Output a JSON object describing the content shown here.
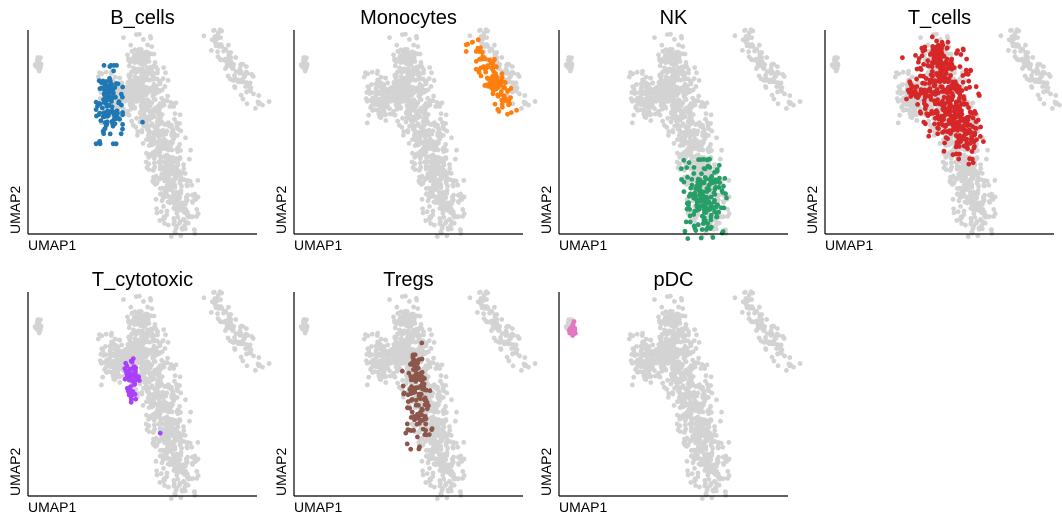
{
  "chart_data": {
    "type": "scatter",
    "xlabel": "UMAP1",
    "ylabel": "UMAP2",
    "background_color": "#d3d3d3",
    "background_blobs": [
      {
        "x": 0.03,
        "y": 0.85,
        "rx": 0.008,
        "ry": 0.02,
        "rot": 0,
        "n": 30
      },
      {
        "x": 0.5,
        "y": 0.86,
        "rx": 0.03,
        "ry": 0.07,
        "rot": 0.2,
        "n": 90
      },
      {
        "x": 0.51,
        "y": 0.7,
        "rx": 0.06,
        "ry": 0.09,
        "rot": 0.3,
        "n": 200
      },
      {
        "x": 0.43,
        "y": 0.69,
        "rx": 0.05,
        "ry": 0.03,
        "rot": 0,
        "n": 60
      },
      {
        "x": 0.36,
        "y": 0.67,
        "rx": 0.03,
        "ry": 0.07,
        "rot": 0,
        "n": 70
      },
      {
        "x": 0.57,
        "y": 0.52,
        "rx": 0.05,
        "ry": 0.1,
        "rot": 0.35,
        "n": 170
      },
      {
        "x": 0.6,
        "y": 0.32,
        "rx": 0.04,
        "ry": 0.08,
        "rot": 0.3,
        "n": 110
      },
      {
        "x": 0.66,
        "y": 0.15,
        "rx": 0.05,
        "ry": 0.09,
        "rot": 0.1,
        "n": 150
      },
      {
        "x": 0.92,
        "y": 0.82,
        "rx": 0.025,
        "ry": 0.11,
        "rot": 0.55,
        "n": 110
      }
    ],
    "cell_types": [
      {
        "name": "B_cells",
        "color": "#1f77b4",
        "blobs": [
          {
            "x": 0.35,
            "y": 0.64,
            "rx": 0.03,
            "ry": 0.1,
            "rot": 0,
            "n": 120
          }
        ],
        "points": [
          [
            0.5,
            0.55
          ]
        ]
      },
      {
        "name": "Monocytes",
        "color": "#ff7f0e",
        "blobs": [
          {
            "x": 0.88,
            "y": 0.78,
            "rx": 0.025,
            "ry": 0.1,
            "rot": 0.45,
            "n": 110
          }
        ],
        "points": []
      },
      {
        "name": "NK",
        "color": "#279e68",
        "blobs": [
          {
            "x": 0.64,
            "y": 0.16,
            "rx": 0.05,
            "ry": 0.1,
            "rot": 0.05,
            "n": 170
          }
        ],
        "points": []
      },
      {
        "name": "T_cells",
        "color": "#d62728",
        "blobs": [
          {
            "x": 0.52,
            "y": 0.73,
            "rx": 0.07,
            "ry": 0.11,
            "rot": 0.3,
            "n": 230
          },
          {
            "x": 0.58,
            "y": 0.53,
            "rx": 0.05,
            "ry": 0.1,
            "rot": 0.35,
            "n": 160
          },
          {
            "x": 0.5,
            "y": 0.89,
            "rx": 0.025,
            "ry": 0.05,
            "rot": 0.2,
            "n": 40
          },
          {
            "x": 0.42,
            "y": 0.7,
            "rx": 0.035,
            "ry": 0.02,
            "rot": 0,
            "n": 30
          }
        ],
        "points": []
      },
      {
        "name": "T_cytotoxic",
        "color": "#aa40fc",
        "blobs": [
          {
            "x": 0.45,
            "y": 0.56,
            "rx": 0.02,
            "ry": 0.06,
            "rot": 0,
            "n": 55
          }
        ],
        "points": [
          [
            0.42,
            0.63
          ],
          [
            0.58,
            0.3
          ]
        ]
      },
      {
        "name": "Tregs",
        "color": "#8c564b",
        "blobs": [
          {
            "x": 0.54,
            "y": 0.46,
            "rx": 0.03,
            "ry": 0.12,
            "rot": 0.05,
            "n": 110
          },
          {
            "x": 0.53,
            "y": 0.62,
            "rx": 0.015,
            "ry": 0.04,
            "rot": 0,
            "n": 20
          }
        ],
        "points": [
          [
            0.53,
            0.7
          ],
          [
            0.56,
            0.76
          ],
          [
            0.59,
            0.44
          ]
        ]
      },
      {
        "name": "pDC",
        "color": "#e377c2",
        "blobs": [
          {
            "x": 0.04,
            "y": 0.83,
            "rx": 0.01,
            "ry": 0.02,
            "rot": 0,
            "n": 30
          }
        ],
        "points": []
      }
    ]
  }
}
